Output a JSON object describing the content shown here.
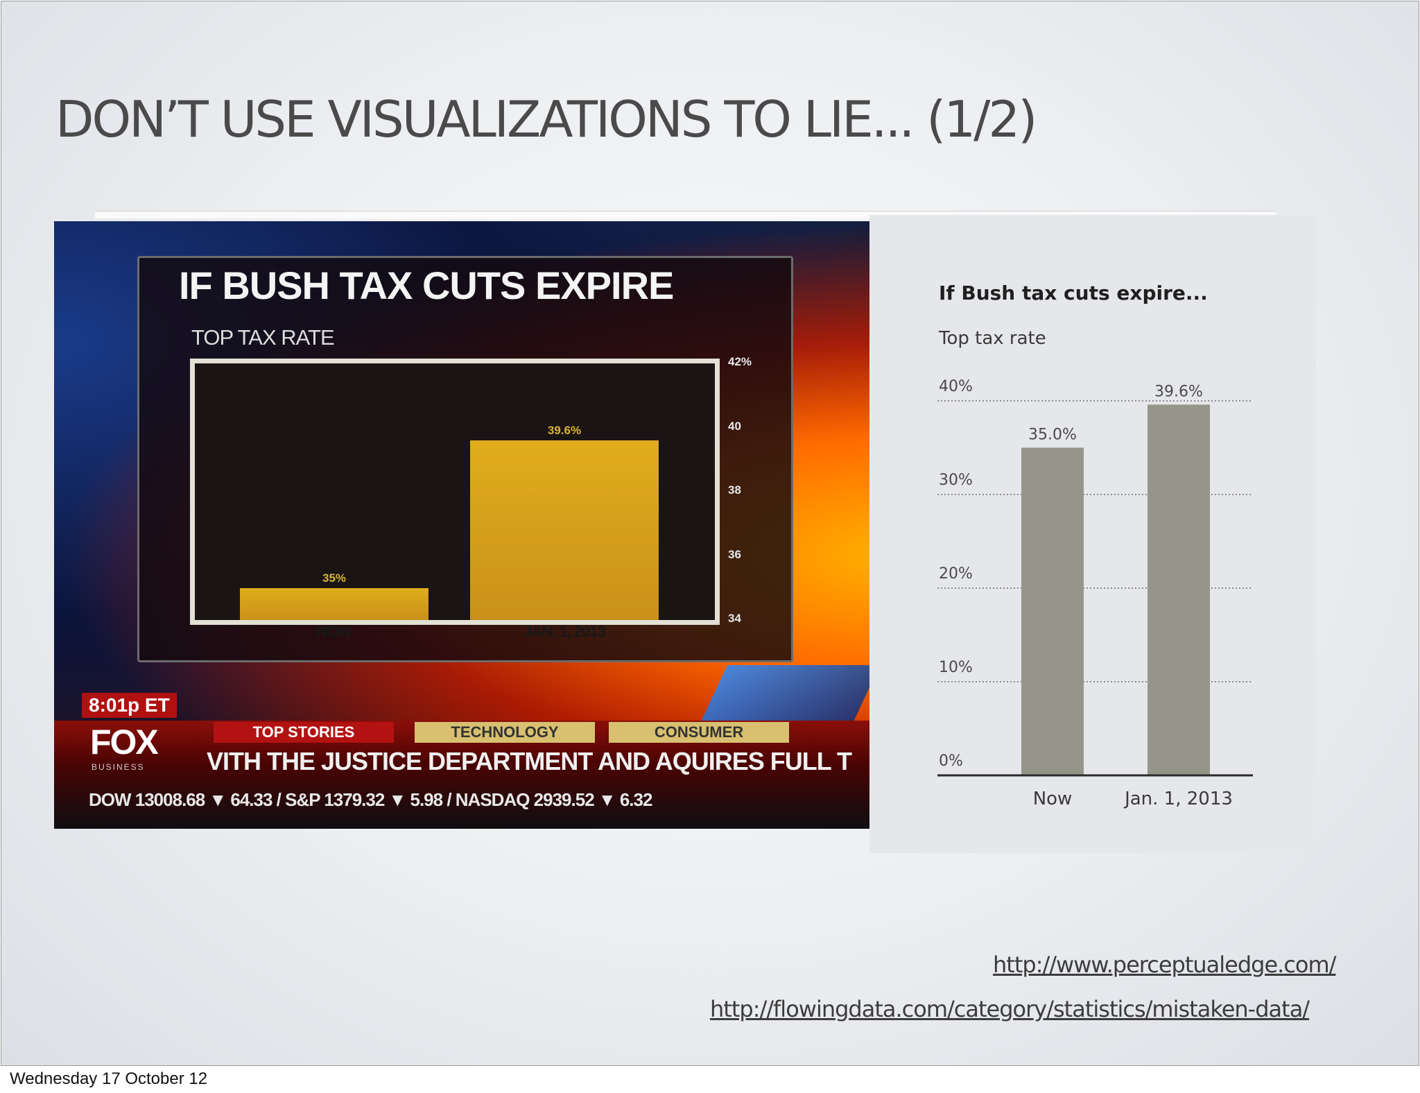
{
  "slide": {
    "title": "DON’T USE VISUALIZATIONS TO LIE... (1/2)"
  },
  "links": {
    "url1": "http://www.perceptualedge.com/",
    "url2": "http://flowingdata.com/category/statistics/mistaken-data/"
  },
  "footer": {
    "date": "Wednesday 17 October 12"
  },
  "tv": {
    "time": "8:01p ET",
    "logo": "FOX",
    "logo_sub": "BUSINESS",
    "tabs": [
      "TOP STORIES",
      "TECHNOLOGY",
      "CONSUMER"
    ],
    "headline": "VITH THE JUSTICE DEPARTMENT AND AQUIRES FULL T",
    "ticker": "DOW  13008.68 ▼ 64.33 / S&P  1379.32 ▼ 5.98 / NASDAQ 2939.52 ▼ 6.32"
  },
  "chart_data": [
    {
      "type": "bar",
      "title": "IF BUSH TAX CUTS EXPIRE",
      "subtitle": "TOP TAX RATE",
      "categories": [
        "NOW",
        "JAN. 1, 2013"
      ],
      "values": [
        35,
        39.6
      ],
      "value_labels": [
        "35%",
        "39.6%"
      ],
      "ylim": [
        34,
        42
      ],
      "yticks": [
        34,
        36,
        38,
        40,
        42
      ],
      "ytick_labels": [
        "34",
        "36",
        "38",
        "40",
        "42%"
      ],
      "colors": {
        "bar": "#e0ad1c",
        "background": "#1a1414"
      }
    },
    {
      "type": "bar",
      "title": "If Bush tax cuts expire...",
      "subtitle": "Top tax rate",
      "categories": [
        "Now",
        "Jan. 1, 2013"
      ],
      "values": [
        35.0,
        39.6
      ],
      "value_labels": [
        "35.0%",
        "39.6%"
      ],
      "ylim": [
        0,
        40
      ],
      "yticks": [
        0,
        10,
        20,
        30,
        40
      ],
      "ytick_labels": [
        "0%",
        "10%",
        "20%",
        "30%",
        "40%"
      ],
      "grid": true,
      "colors": {
        "bar": "#96958a",
        "background": "#e6e7ea"
      }
    }
  ]
}
